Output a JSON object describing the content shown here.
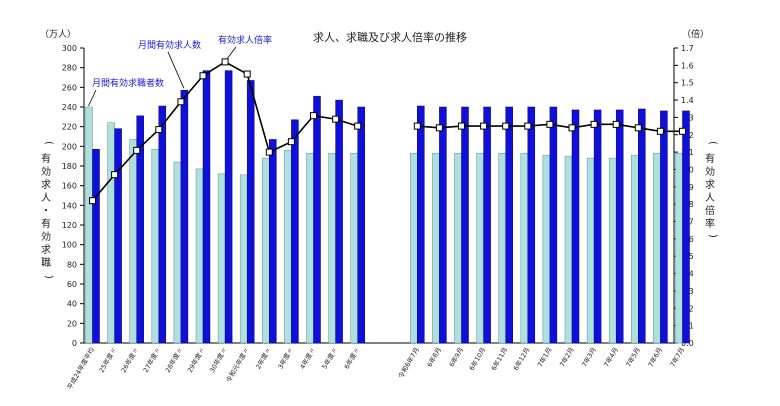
{
  "chart_data": {
    "type": "bar",
    "title": "求人、求職及び求人倍率の推移",
    "left_axis": {
      "unit": "（万人）",
      "label": "有効求人・有効求職",
      "range": [
        0,
        300
      ],
      "ticks": [
        0,
        20,
        40,
        60,
        80,
        100,
        120,
        140,
        160,
        180,
        200,
        220,
        240,
        260,
        280,
        300
      ]
    },
    "right_axis": {
      "unit": "（倍）",
      "label": "有効求人倍率",
      "range": [
        0,
        1.7
      ],
      "ticks": [
        "0.0",
        "0.1",
        "0.2",
        "0.3",
        "0.4",
        "0.5",
        "0.6",
        "0.7",
        "0.8",
        "0.9",
        "1.0",
        "1.1",
        "1.2",
        "1.3",
        "1.4",
        "1.5",
        "1.6",
        "1.7"
      ]
    },
    "categories": [
      "平成24年度平均",
      "25年度〃",
      "26年度〃",
      "27年度〃",
      "28年度〃",
      "29年度〃",
      "30年度〃",
      "令和元年度〃",
      "2年度〃",
      "3年度〃",
      "4年度〃",
      "5年度〃",
      "6年度〃",
      "令和6年7月",
      "6年8月",
      "6年9月",
      "6年10月",
      "6年11月",
      "6年12月",
      "7年1月",
      "7年2月",
      "7年3月",
      "7年4月",
      "7年5月",
      "7年6月",
      "7年7月"
    ],
    "series": [
      {
        "name": "月間有効求職者数",
        "axis": "left",
        "color": "#aee0e0",
        "values": [
          240,
          224,
          207,
          197,
          184,
          177,
          172,
          171,
          188,
          196,
          193,
          193,
          193,
          193,
          193,
          193,
          193,
          193,
          193,
          191,
          190,
          188,
          188,
          191,
          193,
          193
        ]
      },
      {
        "name": "月間有効求人数",
        "axis": "left",
        "color": "#1010d8",
        "values": [
          197,
          218,
          231,
          241,
          257,
          277,
          277,
          267,
          207,
          227,
          251,
          247,
          240,
          241,
          240,
          240,
          240,
          240,
          240,
          240,
          237,
          237,
          237,
          238,
          236,
          236
        ]
      },
      {
        "name": "有効求人倍率",
        "axis": "right",
        "type": "line",
        "values": [
          0.82,
          0.97,
          1.11,
          1.23,
          1.39,
          1.54,
          1.62,
          1.55,
          1.1,
          1.16,
          1.31,
          1.29,
          1.25,
          1.25,
          1.24,
          1.25,
          1.25,
          1.25,
          1.25,
          1.26,
          1.24,
          1.26,
          1.26,
          1.24,
          1.22,
          1.22
        ]
      }
    ],
    "annotations": [
      "月間有効求人数",
      "有効求人倍率",
      "月間有効求職者数"
    ],
    "grid": false
  }
}
